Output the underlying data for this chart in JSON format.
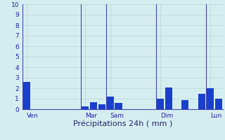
{
  "title": "Précipitations 24h ( mm )",
  "ylim": [
    0,
    10
  ],
  "background_color": "#d4eef0",
  "bar_color": "#1a3fcc",
  "grid_color": "#b8d4d4",
  "separator_color": "#4444aa",
  "bar_values": [
    2.6,
    0,
    0,
    0,
    0,
    0,
    0,
    0.3,
    0.7,
    0.5,
    1.2,
    0.6,
    0,
    0,
    0,
    0,
    1.0,
    2.1,
    0,
    0.9,
    0,
    1.5,
    2.0,
    1.0
  ],
  "day_labels": [
    "Ven",
    "Mar",
    "Sam",
    "Dim",
    "Lun"
  ],
  "day_tick_positions": [
    0,
    7,
    10,
    16,
    22
  ],
  "separator_positions": [
    0,
    7,
    10,
    16,
    22
  ],
  "n_bars": 24,
  "tick_fontsize": 6.5,
  "label_fontsize": 8,
  "yticks": [
    0,
    1,
    2,
    3,
    4,
    5,
    6,
    7,
    8,
    9,
    10
  ]
}
